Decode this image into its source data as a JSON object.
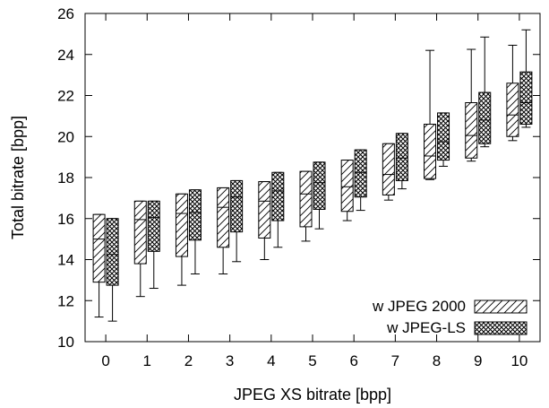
{
  "chart_data": {
    "type": "box",
    "xlabel": "JPEG XS bitrate [bpp]",
    "ylabel": "Total bitrate [bpp]",
    "xlim": [
      -0.5,
      10.5
    ],
    "ylim": [
      10,
      26
    ],
    "categories": [
      "0",
      "1",
      "2",
      "3",
      "4",
      "5",
      "6",
      "7",
      "8",
      "9",
      "10"
    ],
    "yticks": [
      "10",
      "12",
      "14",
      "16",
      "18",
      "20",
      "22",
      "24",
      "26"
    ],
    "grid": false,
    "legend_position": "bottom-right",
    "series": [
      {
        "name": "w JPEG 2000",
        "pattern": "diagonal-hatch",
        "boxes": [
          {
            "whisker_low": 11.2,
            "q1": 12.9,
            "median": 15.0,
            "q3": 16.2,
            "whisker_high": 16.2
          },
          {
            "whisker_low": 12.2,
            "q1": 13.8,
            "median": 15.95,
            "q3": 16.85,
            "whisker_high": 16.85
          },
          {
            "whisker_low": 12.75,
            "q1": 14.15,
            "median": 16.25,
            "q3": 17.2,
            "whisker_high": 17.2
          },
          {
            "whisker_low": 13.3,
            "q1": 14.6,
            "median": 16.55,
            "q3": 17.5,
            "whisker_high": 17.5
          },
          {
            "whisker_low": 14.0,
            "q1": 15.05,
            "median": 16.85,
            "q3": 17.8,
            "whisker_high": 17.8
          },
          {
            "whisker_low": 14.9,
            "q1": 15.6,
            "median": 17.2,
            "q3": 18.3,
            "whisker_high": 18.3
          },
          {
            "whisker_low": 15.9,
            "q1": 16.35,
            "median": 17.55,
            "q3": 18.85,
            "whisker_high": 18.85
          },
          {
            "whisker_low": 16.9,
            "q1": 17.15,
            "median": 18.15,
            "q3": 19.65,
            "whisker_high": 19.65
          },
          {
            "whisker_low": 17.9,
            "q1": 17.95,
            "median": 19.05,
            "q3": 20.6,
            "whisker_high": 24.2
          },
          {
            "whisker_low": 18.8,
            "q1": 18.95,
            "median": 20.05,
            "q3": 21.65,
            "whisker_high": 24.25
          },
          {
            "whisker_low": 19.8,
            "q1": 20.0,
            "median": 21.05,
            "q3": 22.6,
            "whisker_high": 24.45
          }
        ]
      },
      {
        "name": "w JPEG-LS",
        "pattern": "cross-hatch",
        "boxes": [
          {
            "whisker_low": 11.0,
            "q1": 12.75,
            "median": 14.25,
            "q3": 16.0,
            "whisker_high": 16.0
          },
          {
            "whisker_low": 12.6,
            "q1": 14.4,
            "median": 16.05,
            "q3": 16.85,
            "whisker_high": 16.85
          },
          {
            "whisker_low": 13.3,
            "q1": 14.95,
            "median": 16.3,
            "q3": 17.4,
            "whisker_high": 17.4
          },
          {
            "whisker_low": 13.9,
            "q1": 15.35,
            "median": 17.05,
            "q3": 17.85,
            "whisker_high": 17.85
          },
          {
            "whisker_low": 14.6,
            "q1": 15.9,
            "median": 17.35,
            "q3": 18.25,
            "whisker_high": 18.25
          },
          {
            "whisker_low": 15.5,
            "q1": 16.45,
            "median": 17.75,
            "q3": 18.75,
            "whisker_high": 18.75
          },
          {
            "whisker_low": 16.4,
            "q1": 17.05,
            "median": 18.25,
            "q3": 19.35,
            "whisker_high": 19.35
          },
          {
            "whisker_low": 17.45,
            "q1": 17.85,
            "median": 18.95,
            "q3": 20.15,
            "whisker_high": 20.15
          },
          {
            "whisker_low": 18.55,
            "q1": 18.85,
            "median": 19.75,
            "q3": 21.15,
            "whisker_high": 21.15
          },
          {
            "whisker_low": 19.5,
            "q1": 19.65,
            "median": 20.8,
            "q3": 22.15,
            "whisker_high": 24.85
          },
          {
            "whisker_low": 20.45,
            "q1": 20.6,
            "median": 21.65,
            "q3": 23.15,
            "whisker_high": 25.2
          }
        ]
      }
    ]
  }
}
